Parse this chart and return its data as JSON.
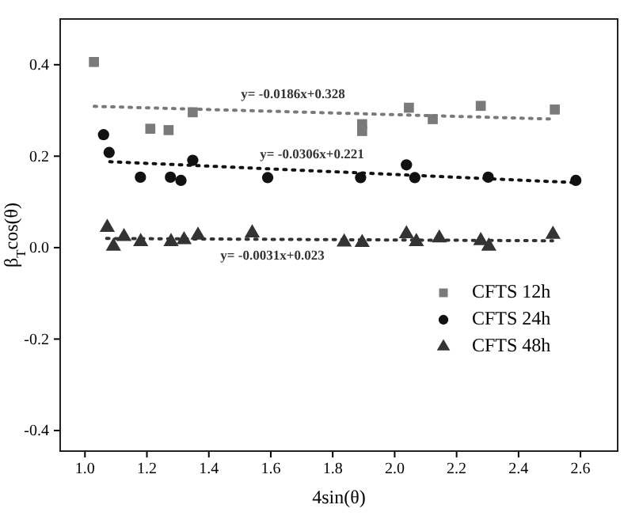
{
  "chart_data": {
    "type": "scatter",
    "xlabel": "4sin(θ)",
    "ylabel": "β$_{T}$cos(θ)",
    "xlim": [
      0.92,
      2.72
    ],
    "ylim": [
      -0.445,
      0.5
    ],
    "xticks": [
      {
        "value": 1,
        "label": "1.0"
      },
      1.2,
      1.4,
      1.6,
      1.8,
      {
        "value": 2,
        "label": "2.0"
      },
      2.2,
      2.4,
      2.6
    ],
    "yticks": [
      -0.4,
      -0.2,
      {
        "value": 0,
        "label": "0.0"
      },
      0.2,
      0.4
    ],
    "legend": "bottom right",
    "grid": false,
    "series": [
      {
        "name": "CFTS 12h",
        "marker": "square",
        "color": "#7a7a7a",
        "x": [
          1.029,
          1.211,
          1.27,
          1.348,
          1.895,
          1.895,
          2.046,
          2.123,
          2.278,
          2.517
        ],
        "values": [
          0.406,
          0.26,
          0.257,
          0.296,
          0.27,
          0.255,
          0.306,
          0.281,
          0.31,
          0.302
        ]
      },
      {
        "name": "CFTS 24h",
        "marker": "circle",
        "color": "#111111",
        "x": [
          1.06,
          1.078,
          1.179,
          1.276,
          1.31,
          1.348,
          1.59,
          1.89,
          2.038,
          2.065,
          2.302,
          2.585
        ],
        "values": [
          0.247,
          0.208,
          0.154,
          0.154,
          0.147,
          0.191,
          0.153,
          0.153,
          0.181,
          0.153,
          0.154,
          0.147
        ]
      },
      {
        "name": "CFTS 48h",
        "marker": "triangle",
        "color": "#333333",
        "x": [
          1.072,
          1.092,
          1.126,
          1.18,
          1.278,
          1.32,
          1.365,
          1.54,
          1.837,
          1.895,
          2.038,
          2.07,
          2.144,
          2.278,
          2.304,
          2.511
        ],
        "values": [
          0.044,
          0.003,
          0.024,
          0.013,
          0.013,
          0.017,
          0.027,
          0.032,
          0.012,
          0.011,
          0.03,
          0.013,
          0.021,
          0.015,
          0.003,
          0.029
        ]
      },
      {
        "type": "line",
        "line_style": "dotted",
        "color": "#7a7a7a",
        "x": [
          1.03,
          2.52
        ],
        "values": [
          0.309,
          0.281
        ]
      },
      {
        "type": "line",
        "line_style": "dotted",
        "color": "#111111",
        "x": [
          1.08,
          2.59
        ],
        "values": [
          0.188,
          0.142
        ]
      },
      {
        "type": "line",
        "line_style": "dotted",
        "color": "#333333",
        "x": [
          1.07,
          2.51
        ],
        "values": [
          0.02,
          0.015
        ]
      }
    ],
    "annotations": [
      "y= -0.0186x+0.328",
      "y= -0.0306x+0.221",
      "y= -0.0031x+0.023"
    ]
  }
}
